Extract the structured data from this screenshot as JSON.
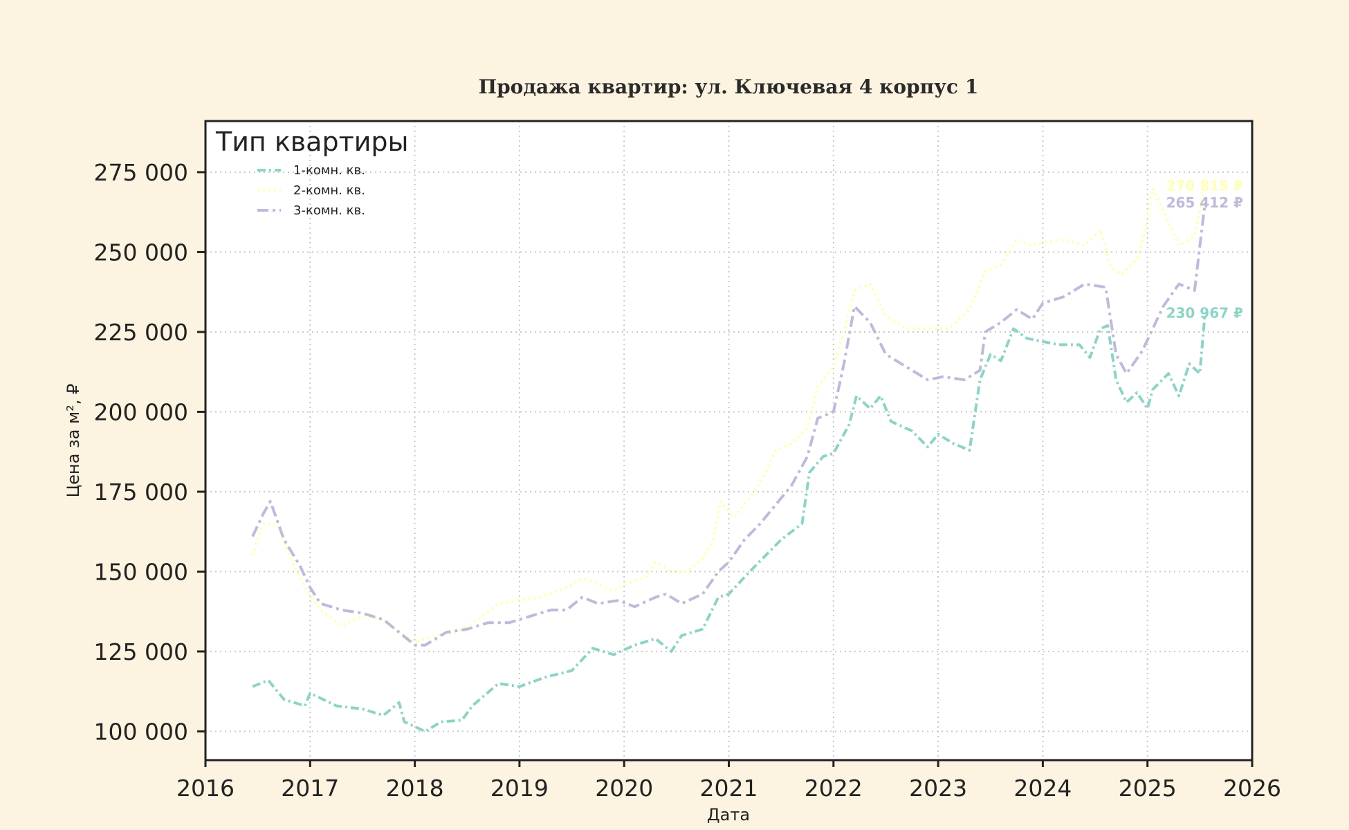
{
  "chart_data": {
    "type": "line",
    "title": "Продажа квартир: ул. Ключевая 4 корпус 1",
    "xlabel": "Дата",
    "ylabel": "Цена за м², ₽",
    "x_ticks": [
      "2016",
      "2017",
      "2018",
      "2019",
      "2020",
      "2021",
      "2022",
      "2023",
      "2024",
      "2025",
      "2026"
    ],
    "y_ticks": [
      "100 000",
      "125 000",
      "150 000",
      "175 000",
      "200 000",
      "225 000",
      "250 000",
      "275 000"
    ],
    "xlim": [
      2016.0,
      2026.0
    ],
    "ylim": [
      91000,
      291000
    ],
    "grid": true,
    "legend": {
      "title": "Тип квартиры",
      "placement": "top-left",
      "entries": [
        "1-комн. кв.",
        "2-комн. кв.",
        "3-комн. кв."
      ]
    },
    "series": [
      {
        "name": "1-комн. кв.",
        "color": "#8dd3c7",
        "dash": "dash-dot",
        "end_label": "230 967 ₽",
        "points": [
          [
            2016.45,
            114000
          ],
          [
            2016.6,
            116000
          ],
          [
            2016.75,
            110000
          ],
          [
            2016.95,
            108000
          ],
          [
            2017.0,
            112000
          ],
          [
            2017.25,
            108000
          ],
          [
            2017.5,
            107000
          ],
          [
            2017.7,
            105000
          ],
          [
            2017.85,
            109000
          ],
          [
            2017.9,
            103000
          ],
          [
            2018.1,
            100000
          ],
          [
            2018.25,
            103000
          ],
          [
            2018.45,
            103500
          ],
          [
            2018.55,
            108000
          ],
          [
            2018.8,
            115000
          ],
          [
            2019.0,
            114000
          ],
          [
            2019.25,
            117000
          ],
          [
            2019.5,
            119000
          ],
          [
            2019.7,
            126000
          ],
          [
            2019.9,
            124000
          ],
          [
            2020.1,
            127000
          ],
          [
            2020.3,
            129000
          ],
          [
            2020.45,
            125000
          ],
          [
            2020.55,
            130000
          ],
          [
            2020.75,
            132000
          ],
          [
            2020.9,
            142000
          ],
          [
            2021.0,
            143000
          ],
          [
            2021.2,
            150000
          ],
          [
            2021.35,
            155000
          ],
          [
            2021.5,
            160000
          ],
          [
            2021.7,
            165000
          ],
          [
            2021.77,
            181000
          ],
          [
            2021.9,
            186000
          ],
          [
            2022.0,
            187000
          ],
          [
            2022.15,
            196000
          ],
          [
            2022.22,
            205000
          ],
          [
            2022.35,
            201000
          ],
          [
            2022.45,
            205000
          ],
          [
            2022.55,
            197000
          ],
          [
            2022.75,
            194000
          ],
          [
            2022.9,
            189000
          ],
          [
            2023.0,
            193000
          ],
          [
            2023.15,
            190000
          ],
          [
            2023.3,
            188000
          ],
          [
            2023.4,
            210000
          ],
          [
            2023.5,
            218000
          ],
          [
            2023.6,
            216000
          ],
          [
            2023.72,
            226000
          ],
          [
            2023.85,
            223000
          ],
          [
            2024.0,
            222000
          ],
          [
            2024.15,
            221000
          ],
          [
            2024.35,
            221000
          ],
          [
            2024.45,
            217000
          ],
          [
            2024.55,
            226000
          ],
          [
            2024.62,
            227000
          ],
          [
            2024.7,
            210000
          ],
          [
            2024.8,
            203000
          ],
          [
            2024.9,
            206000
          ],
          [
            2025.0,
            201000
          ],
          [
            2025.05,
            207000
          ],
          [
            2025.2,
            212000
          ],
          [
            2025.3,
            205000
          ],
          [
            2025.4,
            215000
          ],
          [
            2025.5,
            212000
          ],
          [
            2025.55,
            230967
          ]
        ]
      },
      {
        "name": "2-комн. кв.",
        "color": "#ffffb3",
        "dash": "dotted",
        "end_label": "270 815 ₽",
        "points": [
          [
            2016.45,
            155000
          ],
          [
            2016.55,
            165000
          ],
          [
            2016.7,
            164000
          ],
          [
            2016.8,
            155000
          ],
          [
            2016.95,
            145000
          ],
          [
            2017.1,
            138000
          ],
          [
            2017.3,
            133000
          ],
          [
            2017.5,
            136000
          ],
          [
            2017.7,
            135000
          ],
          [
            2017.85,
            131000
          ],
          [
            2018.0,
            128000
          ],
          [
            2018.2,
            130000
          ],
          [
            2018.4,
            131000
          ],
          [
            2018.6,
            135000
          ],
          [
            2018.8,
            140000
          ],
          [
            2019.0,
            141000
          ],
          [
            2019.2,
            142000
          ],
          [
            2019.45,
            145000
          ],
          [
            2019.6,
            148000
          ],
          [
            2019.75,
            146000
          ],
          [
            2019.9,
            144000
          ],
          [
            2020.0,
            146000
          ],
          [
            2020.2,
            148000
          ],
          [
            2020.3,
            153000
          ],
          [
            2020.45,
            150000
          ],
          [
            2020.6,
            150000
          ],
          [
            2020.75,
            154000
          ],
          [
            2020.85,
            160000
          ],
          [
            2020.92,
            172000
          ],
          [
            2021.05,
            167000
          ],
          [
            2021.2,
            173000
          ],
          [
            2021.35,
            181000
          ],
          [
            2021.45,
            188000
          ],
          [
            2021.6,
            190000
          ],
          [
            2021.75,
            195000
          ],
          [
            2021.85,
            208000
          ],
          [
            2022.0,
            214000
          ],
          [
            2022.1,
            225000
          ],
          [
            2022.2,
            238000
          ],
          [
            2022.35,
            240000
          ],
          [
            2022.5,
            230000
          ],
          [
            2022.7,
            226000
          ],
          [
            2022.9,
            226000
          ],
          [
            2023.1,
            226000
          ],
          [
            2023.3,
            232000
          ],
          [
            2023.45,
            244000
          ],
          [
            2023.6,
            246000
          ],
          [
            2023.75,
            254000
          ],
          [
            2023.9,
            252000
          ],
          [
            2024.0,
            253000
          ],
          [
            2024.2,
            254000
          ],
          [
            2024.4,
            252000
          ],
          [
            2024.55,
            257000
          ],
          [
            2024.65,
            245000
          ],
          [
            2024.75,
            243000
          ],
          [
            2024.9,
            248000
          ],
          [
            2025.0,
            260000
          ],
          [
            2025.05,
            270000
          ],
          [
            2025.15,
            263000
          ],
          [
            2025.3,
            252000
          ],
          [
            2025.45,
            255000
          ],
          [
            2025.55,
            270815
          ]
        ]
      },
      {
        "name": "3-комн. кв.",
        "color": "#bebada",
        "dash": "dash-long",
        "end_label": "265 412 ₽",
        "points": [
          [
            2016.45,
            161000
          ],
          [
            2016.55,
            168000
          ],
          [
            2016.62,
            172000
          ],
          [
            2016.75,
            160000
          ],
          [
            2016.9,
            152000
          ],
          [
            2017.0,
            145000
          ],
          [
            2017.1,
            140000
          ],
          [
            2017.3,
            138000
          ],
          [
            2017.5,
            137000
          ],
          [
            2017.7,
            135000
          ],
          [
            2017.85,
            131000
          ],
          [
            2018.0,
            127000
          ],
          [
            2018.1,
            127000
          ],
          [
            2018.3,
            131000
          ],
          [
            2018.5,
            132000
          ],
          [
            2018.7,
            134000
          ],
          [
            2018.9,
            134000
          ],
          [
            2019.1,
            136000
          ],
          [
            2019.3,
            138000
          ],
          [
            2019.45,
            138000
          ],
          [
            2019.6,
            142000
          ],
          [
            2019.75,
            140000
          ],
          [
            2019.95,
            141000
          ],
          [
            2020.1,
            139000
          ],
          [
            2020.3,
            142000
          ],
          [
            2020.4,
            143000
          ],
          [
            2020.55,
            140000
          ],
          [
            2020.75,
            143000
          ],
          [
            2020.9,
            150000
          ],
          [
            2021.0,
            153000
          ],
          [
            2021.15,
            160000
          ],
          [
            2021.3,
            165000
          ],
          [
            2021.45,
            171000
          ],
          [
            2021.6,
            177000
          ],
          [
            2021.75,
            186000
          ],
          [
            2021.85,
            198000
          ],
          [
            2022.0,
            200000
          ],
          [
            2022.1,
            215000
          ],
          [
            2022.2,
            233000
          ],
          [
            2022.35,
            228000
          ],
          [
            2022.5,
            218000
          ],
          [
            2022.7,
            214000
          ],
          [
            2022.9,
            210000
          ],
          [
            2023.05,
            211000
          ],
          [
            2023.25,
            210000
          ],
          [
            2023.4,
            213000
          ],
          [
            2023.45,
            225000
          ],
          [
            2023.6,
            228000
          ],
          [
            2023.75,
            232000
          ],
          [
            2023.9,
            229000
          ],
          [
            2024.0,
            234000
          ],
          [
            2024.2,
            236000
          ],
          [
            2024.4,
            240000
          ],
          [
            2024.6,
            239000
          ],
          [
            2024.7,
            218000
          ],
          [
            2024.8,
            212000
          ],
          [
            2024.95,
            219000
          ],
          [
            2025.05,
            226000
          ],
          [
            2025.15,
            233000
          ],
          [
            2025.3,
            240000
          ],
          [
            2025.45,
            238000
          ],
          [
            2025.55,
            265412
          ]
        ]
      }
    ]
  }
}
